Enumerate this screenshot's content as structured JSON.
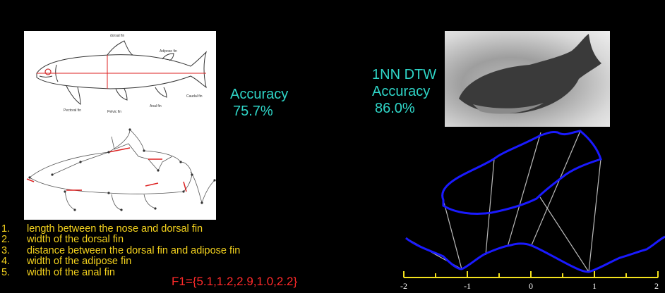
{
  "diagram_labels": {
    "dorsal": "dorsal fin",
    "adipose": "Adipose fin",
    "caudal": "Caudal fin",
    "pectoral": "Pectoral fin",
    "pelvic": "Pelvic fin",
    "anal": "Anal fin"
  },
  "accuracy_left": {
    "line1": "Accuracy",
    "line2": "75.7%"
  },
  "accuracy_right": {
    "line1": "1NN DTW",
    "line2": "Accuracy",
    "line3": "86.0%"
  },
  "features": [
    {
      "num": "1.",
      "text": "length between the nose and dorsal fin"
    },
    {
      "num": "2.",
      "text": "width of the dorsal fin"
    },
    {
      "num": "3.",
      "text": "distance between the dorsal fin and adipose fin"
    },
    {
      "num": "4.",
      "text": "width of the adipose fin"
    },
    {
      "num": "5.",
      "text": "width of the anal fin"
    }
  ],
  "formula": "F1={5.1,1.2,2.9,1.0,2.2}",
  "axis": {
    "ticks": [
      "-2",
      "-1",
      "0",
      "1",
      "2"
    ]
  },
  "colors": {
    "accuracy": "#2fd6c8",
    "features": "#f4d21d",
    "formula": "#ff2a2a",
    "shape": "#1a1aff",
    "axis": "#f4e21d"
  }
}
